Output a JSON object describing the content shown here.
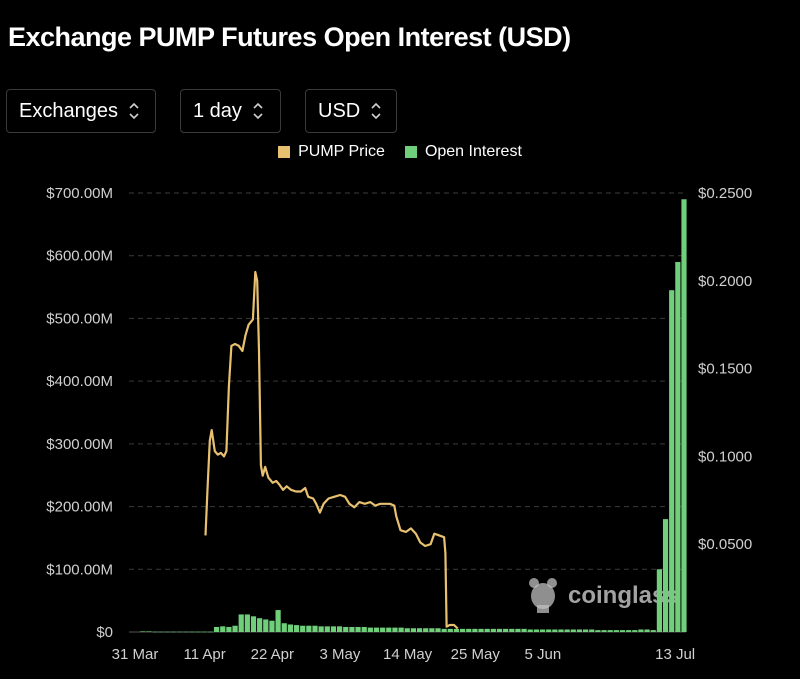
{
  "header": {
    "title": "Exchange PUMP Futures Open Interest (USD)"
  },
  "controls": {
    "exchanges": {
      "value": "Exchanges"
    },
    "interval": {
      "value": "1 day"
    },
    "currency": {
      "value": "USD"
    }
  },
  "watermark": "coinglass",
  "colors": {
    "price": "#e8c170",
    "open_interest": "#6fcf7b",
    "background": "#000000"
  },
  "chart_data": {
    "type": "bar+line",
    "title": "Exchange PUMP Futures Open Interest (USD)",
    "legend": [
      "PUMP Price",
      "Open Interest"
    ],
    "legend_position": "top-center",
    "x_tick_labels": [
      "31 Mar",
      "11 Apr",
      "22 Apr",
      "3 May",
      "14 May",
      "25 May",
      "5 Jun",
      "13 Jul"
    ],
    "y_left": {
      "ticks": [
        "$700.00M",
        "$600.00M",
        "$500.00M",
        "$400.00M",
        "$300.00M",
        "$200.00M",
        "$100.00M",
        "$0"
      ],
      "range": [
        0,
        700000000
      ]
    },
    "y_right": {
      "ticks": [
        "$0.2500",
        "$0.2000",
        "$0.1500",
        "$0.1000",
        "$0.0500"
      ],
      "range": [
        0,
        0.25
      ]
    },
    "grid": "horizontal dashed",
    "open_interest_series": {
      "name": "Open Interest",
      "axis": "left",
      "values_millions": [
        1,
        1,
        0.5,
        0.5,
        0.5,
        0.5,
        0.5,
        0.5,
        0.5,
        0.5,
        0.5,
        0.5,
        8,
        9,
        8,
        10,
        28,
        28,
        25,
        22,
        20,
        18,
        35,
        14,
        12,
        11,
        10,
        10,
        10,
        9,
        9,
        9,
        9,
        8,
        8,
        8,
        8,
        7,
        7,
        7,
        7,
        7,
        7,
        6,
        6,
        6,
        6,
        6,
        6,
        5,
        5,
        5,
        5,
        5,
        5,
        5,
        5,
        5,
        5,
        5,
        5,
        5,
        5,
        4,
        4,
        4,
        4,
        4,
        4,
        4,
        4,
        4,
        4,
        4,
        3,
        3,
        3,
        3,
        3,
        3,
        3,
        4,
        4,
        3,
        100,
        180,
        545,
        590,
        690
      ]
    },
    "price_series": {
      "name": "PUMP Price",
      "axis": "right",
      "points": [
        [
          10.6,
          0.055
        ],
        [
          10.9,
          0.08
        ],
        [
          11.3,
          0.109
        ],
        [
          11.6,
          0.115
        ],
        [
          12.1,
          0.103
        ],
        [
          12.6,
          0.101
        ],
        [
          13.1,
          0.102
        ],
        [
          13.6,
          0.1
        ],
        [
          14.0,
          0.103
        ],
        [
          14.4,
          0.14
        ],
        [
          14.8,
          0.163
        ],
        [
          15.4,
          0.164
        ],
        [
          16.0,
          0.163
        ],
        [
          16.6,
          0.16
        ],
        [
          17.1,
          0.169
        ],
        [
          17.6,
          0.175
        ],
        [
          18.3,
          0.178
        ],
        [
          18.7,
          0.205
        ],
        [
          19.0,
          0.2
        ],
        [
          19.3,
          0.16
        ],
        [
          19.6,
          0.095
        ],
        [
          19.9,
          0.089
        ],
        [
          20.3,
          0.094
        ],
        [
          20.8,
          0.088
        ],
        [
          21.5,
          0.085
        ],
        [
          22.1,
          0.086
        ],
        [
          22.6,
          0.084
        ],
        [
          23.2,
          0.081
        ],
        [
          23.8,
          0.083
        ],
        [
          24.5,
          0.081
        ],
        [
          25.3,
          0.08
        ],
        [
          26.1,
          0.08
        ],
        [
          26.8,
          0.082
        ],
        [
          27.3,
          0.077
        ],
        [
          28.1,
          0.076
        ],
        [
          28.6,
          0.073
        ],
        [
          29.2,
          0.068
        ],
        [
          29.8,
          0.073
        ],
        [
          30.6,
          0.076
        ],
        [
          31.5,
          0.077
        ],
        [
          32.5,
          0.078
        ],
        [
          33.3,
          0.077
        ],
        [
          34.0,
          0.073
        ],
        [
          34.8,
          0.071
        ],
        [
          35.6,
          0.074
        ],
        [
          36.5,
          0.073
        ],
        [
          37.4,
          0.074
        ],
        [
          38.2,
          0.072
        ],
        [
          39.0,
          0.073
        ],
        [
          39.8,
          0.073
        ],
        [
          40.6,
          0.073
        ],
        [
          41.3,
          0.072
        ],
        [
          41.6,
          0.066
        ],
        [
          42.3,
          0.058
        ],
        [
          43.2,
          0.057
        ],
        [
          44.0,
          0.059
        ],
        [
          44.8,
          0.056
        ],
        [
          45.5,
          0.051
        ],
        [
          46.3,
          0.049
        ],
        [
          47.2,
          0.05
        ],
        [
          47.8,
          0.056
        ],
        [
          48.6,
          0.055
        ],
        [
          49.4,
          0.054
        ],
        [
          49.6,
          0.045
        ],
        [
          49.8,
          0.003
        ],
        [
          50.3,
          0.004
        ],
        [
          51.0,
          0.004
        ],
        [
          51.6,
          0.002
        ]
      ]
    }
  }
}
